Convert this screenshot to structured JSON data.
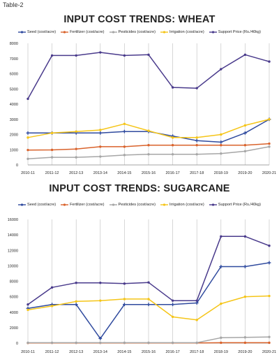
{
  "page_label": "Table-2",
  "chart_data": [
    {
      "type": "line",
      "title": "INPUT COST TRENDS: WHEAT",
      "xlabel": "",
      "ylabel": "",
      "ylim": [
        0,
        8000
      ],
      "yticks": [
        "0",
        "1000",
        "2000",
        "3000",
        "4000",
        "5000",
        "6000",
        "7000",
        "8000"
      ],
      "ytick_values": [
        0,
        1000,
        2000,
        3000,
        4000,
        5000,
        6000,
        7000,
        8000
      ],
      "categories": [
        "2010-11",
        "2011-12",
        "2012-13",
        "2013-14",
        "2014-15",
        "2015-16",
        "2016-17",
        "2017-18",
        "2018-19",
        "2019-20",
        "2020-21"
      ],
      "grid": "vertical",
      "legend_position": "top",
      "series": [
        {
          "name": "Seed (cost/acre)",
          "color": "#2f4a9e",
          "marker": "plus",
          "values": [
            2100,
            2100,
            2100,
            2100,
            2200,
            2200,
            1900,
            1600,
            1500,
            2100,
            3000
          ]
        },
        {
          "name": "Fertilizer (cost/acre)",
          "color": "#d9622b",
          "marker": "dot",
          "values": [
            980,
            990,
            1050,
            1200,
            1200,
            1300,
            1300,
            1300,
            1300,
            1300,
            1400
          ]
        },
        {
          "name": "Pesticides (cost/acre)",
          "color": "#a6a6a6",
          "marker": "dot",
          "values": [
            400,
            500,
            500,
            550,
            650,
            700,
            700,
            700,
            750,
            900,
            1200
          ]
        },
        {
          "name": "Irrigation (cost/acre)",
          "color": "#f5c518",
          "marker": "dot",
          "values": [
            1800,
            2100,
            2200,
            2300,
            2700,
            2250,
            1800,
            1800,
            2000,
            2600,
            3000
          ]
        },
        {
          "name": "Support Price (Rs./40kg)",
          "color": "#4a3b8c",
          "marker": "dot",
          "values": [
            4350,
            7200,
            7200,
            7400,
            7200,
            7250,
            5100,
            5050,
            6300,
            7250,
            6800
          ]
        }
      ]
    },
    {
      "type": "line",
      "title": "INPUT COST TRENDS: SUGARCANE",
      "xlabel": "",
      "ylabel": "",
      "ylim": [
        0,
        16000
      ],
      "yticks": [
        "0",
        "2000",
        "4000",
        "6000",
        "8000",
        "10000",
        "12000",
        "14000",
        "16000"
      ],
      "ytick_values": [
        0,
        2000,
        4000,
        6000,
        8000,
        10000,
        12000,
        14000,
        16000
      ],
      "categories": [
        "2010-11",
        "2011-12",
        "2012-13",
        "2013-14",
        "2014-15",
        "2015-16",
        "2016-17",
        "2017-18",
        "2018-19",
        "2019-20",
        "2020-21"
      ],
      "grid": "vertical",
      "legend_position": "top",
      "series": [
        {
          "name": "Seed (cost/acre)",
          "color": "#2f4a9e",
          "marker": "plus",
          "values": [
            4500,
            5000,
            5000,
            600,
            5000,
            5000,
            5000,
            5200,
            9900,
            9900,
            10400
          ]
        },
        {
          "name": "Fertilizer (cost/acre)",
          "color": "#d9622b",
          "marker": "dot",
          "values": [
            20,
            30,
            30,
            30,
            30,
            30,
            30,
            30,
            50,
            50,
            50
          ]
        },
        {
          "name": "Pesticides (cost/acre)",
          "color": "#a6a6a6",
          "marker": "dot",
          "values": [
            50,
            50,
            50,
            50,
            50,
            50,
            50,
            50,
            700,
            750,
            800
          ]
        },
        {
          "name": "Irrigation (cost/acre)",
          "color": "#f5c518",
          "marker": "dot",
          "values": [
            4300,
            4800,
            5400,
            5500,
            5700,
            5700,
            3400,
            3000,
            5100,
            6000,
            6100
          ]
        },
        {
          "name": "Support Price (Rs./40kg)",
          "color": "#4a3b8c",
          "marker": "dot",
          "values": [
            5000,
            7200,
            7800,
            7800,
            7700,
            7850,
            5500,
            5500,
            13800,
            13800,
            12600
          ]
        }
      ]
    }
  ]
}
